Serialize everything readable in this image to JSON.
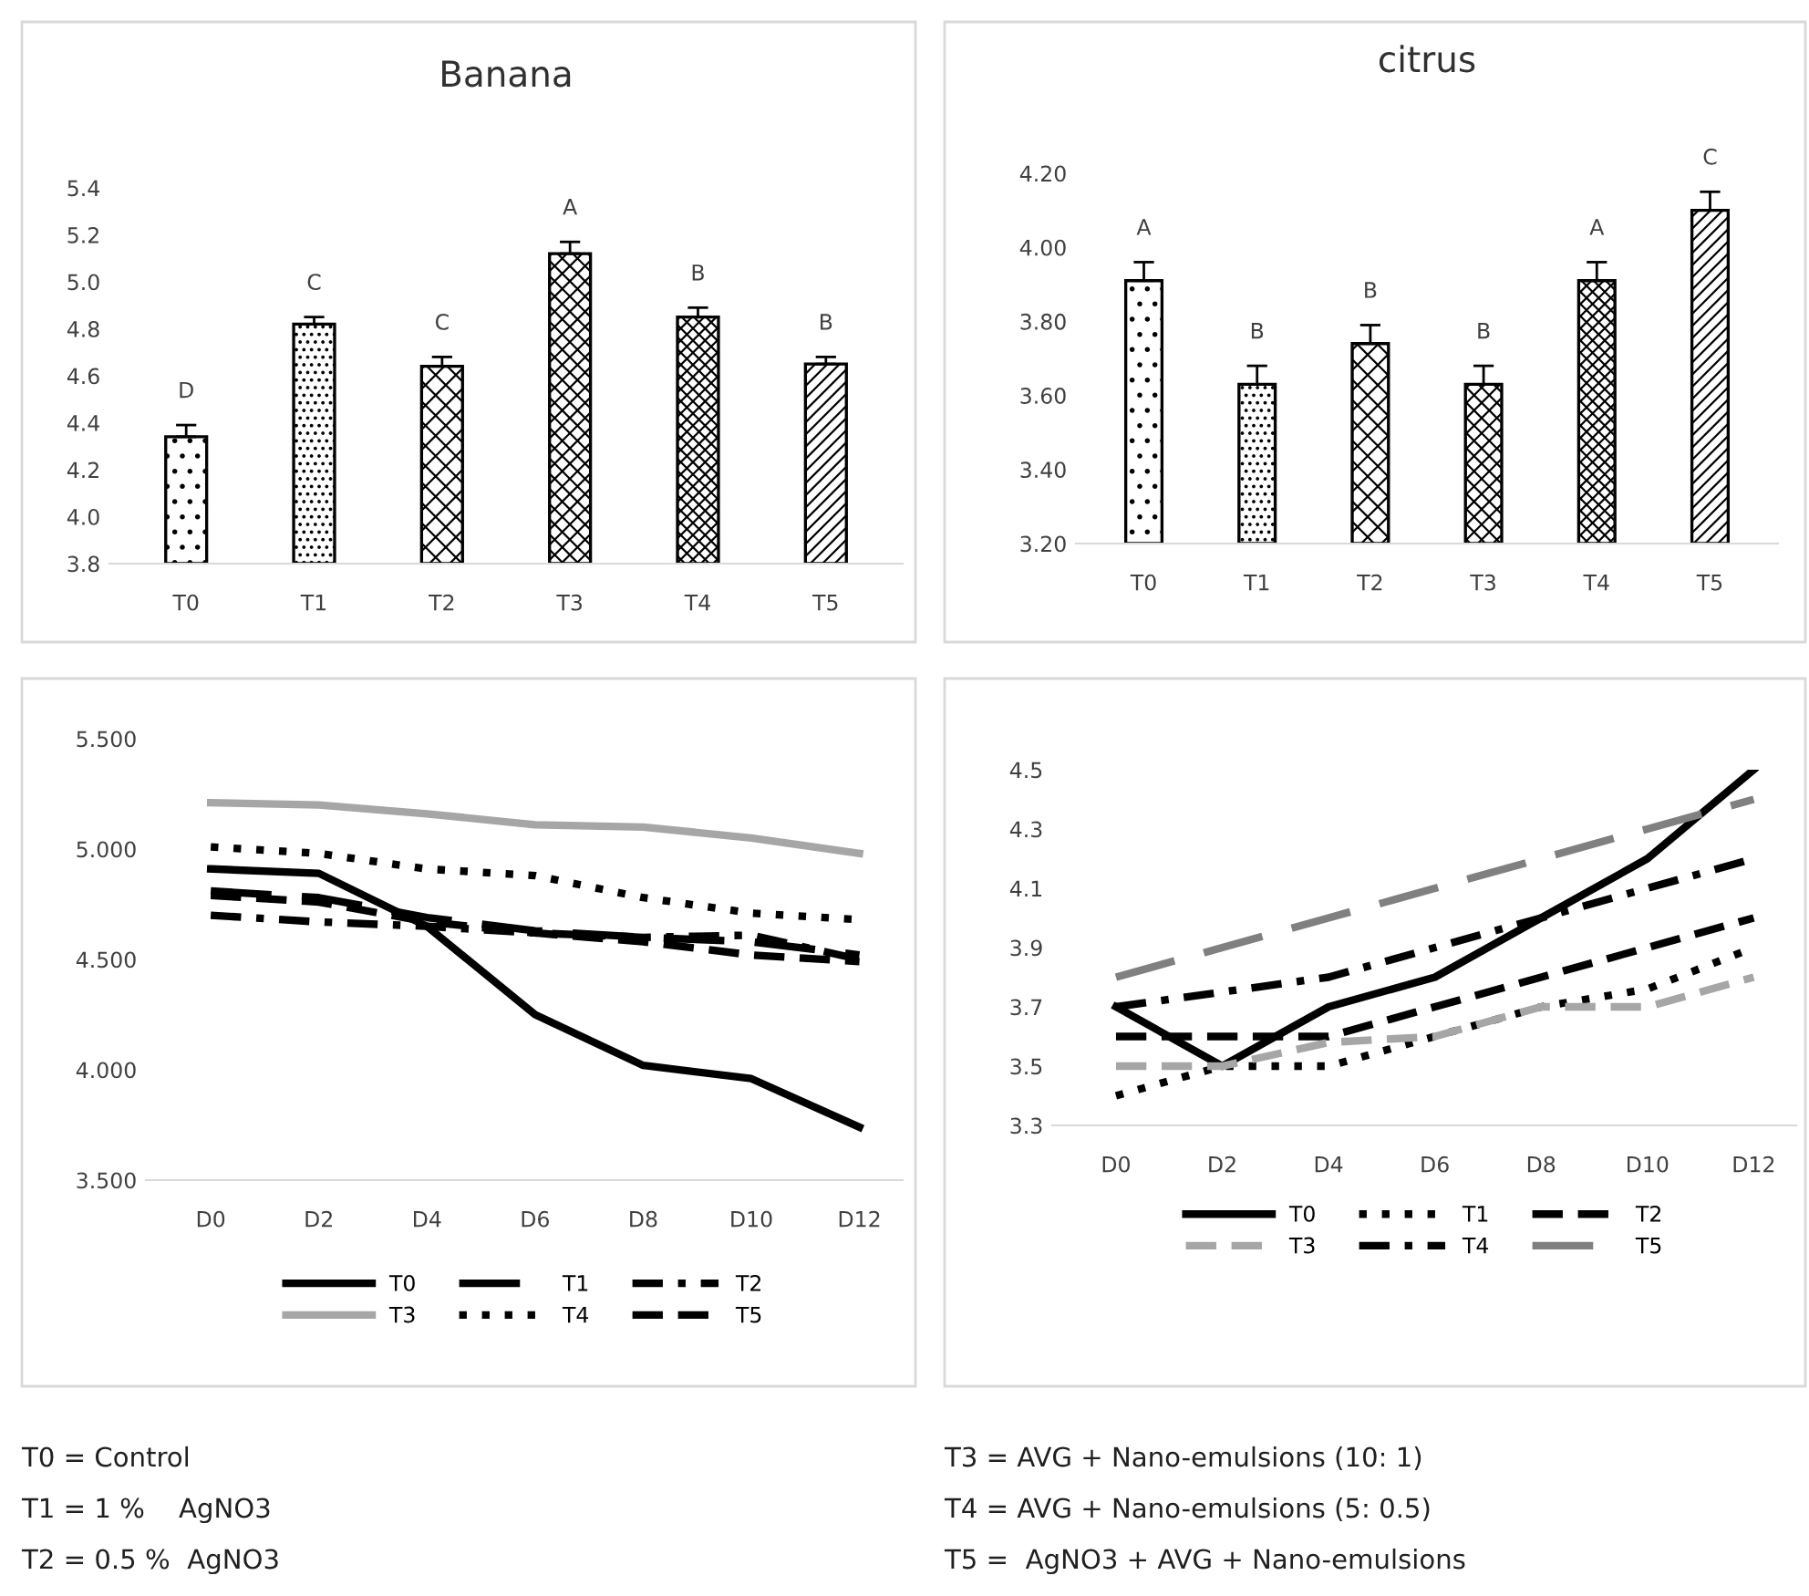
{
  "chart_data": [
    {
      "type": "bar",
      "title": "Banana",
      "categories": [
        "T0",
        "T1",
        "T2",
        "T3",
        "T4",
        "T5"
      ],
      "values": [
        4.34,
        4.82,
        4.64,
        5.12,
        4.85,
        4.65
      ],
      "colors": [
        "#000000",
        "#000000",
        "#000000",
        "#000000",
        "#000000",
        "#000000"
      ],
      "errors": [
        [
          4.34,
          4.39
        ],
        [
          4.82,
          4.85
        ],
        [
          4.64,
          4.68
        ],
        [
          5.12,
          5.17
        ],
        [
          4.85,
          4.89
        ],
        [
          4.65,
          4.68
        ]
      ],
      "ylim": [
        3.8,
        5.4
      ],
      "yticks": [
        {
          "value": 3.8,
          "label": "3.8"
        },
        {
          "value": 4.0,
          "label": "4.0"
        },
        {
          "value": 4.2,
          "label": "4.2"
        },
        {
          "value": 4.4,
          "label": "4.4"
        },
        {
          "value": 4.6,
          "label": "4.6"
        },
        {
          "value": 4.8,
          "label": "4.8"
        },
        {
          "value": 5.0,
          "label": "5.0"
        },
        {
          "value": 5.2,
          "label": "5.2"
        },
        {
          "value": 5.4,
          "label": "5.4"
        }
      ],
      "annotations": [
        {
          "text": "D",
          "x": "T0",
          "y": 4.39
        },
        {
          "text": "C",
          "x": "T1",
          "y": 4.85
        },
        {
          "text": "C",
          "x": "T2",
          "y": 4.68
        },
        {
          "text": "A",
          "x": "T3",
          "y": 5.17
        },
        {
          "text": "B",
          "x": "T4",
          "y": 4.89
        },
        {
          "text": "B",
          "x": "T5",
          "y": 4.68
        }
      ],
      "grid": false
    },
    {
      "type": "bar",
      "title": "citrus",
      "categories": [
        "T0",
        "T1",
        "T2",
        "T3",
        "T4",
        "T5"
      ],
      "values": [
        3.91,
        3.63,
        3.74,
        3.63,
        3.91,
        4.1
      ],
      "colors": [
        "#000000",
        "#000000",
        "#000000",
        "#000000",
        "#000000",
        "#000000"
      ],
      "errors": [
        [
          3.91,
          3.96
        ],
        [
          3.63,
          3.68
        ],
        [
          3.74,
          3.79
        ],
        [
          3.63,
          3.68
        ],
        [
          3.91,
          3.96
        ],
        [
          4.1,
          4.15
        ]
      ],
      "ylim": [
        3.2,
        4.2
      ],
      "yticks": [
        {
          "value": 3.2,
          "label": "3.20"
        },
        {
          "value": 3.4,
          "label": "3.40"
        },
        {
          "value": 3.6,
          "label": "3.60"
        },
        {
          "value": 3.8,
          "label": "3.80"
        },
        {
          "value": 4.0,
          "label": "4.00"
        },
        {
          "value": 4.2,
          "label": "4.20"
        }
      ],
      "annotations": [
        {
          "text": "A",
          "x": "T0",
          "y": 3.96
        },
        {
          "text": "B",
          "x": "T1",
          "y": 3.68
        },
        {
          "text": "B",
          "x": "T2",
          "y": 3.79
        },
        {
          "text": "B",
          "x": "T3",
          "y": 3.68
        },
        {
          "text": "A",
          "x": "T4",
          "y": 3.96
        },
        {
          "text": "C",
          "x": "T5",
          "y": 4.15
        }
      ],
      "grid": false
    },
    {
      "type": "line",
      "categories": [
        "D0",
        "D2",
        "D4",
        "D6",
        "D8",
        "D10",
        "D12"
      ],
      "series": [
        {
          "name": "T0",
          "color": "#000000",
          "line_style": "solid",
          "values": [
            4.91,
            4.89,
            4.65,
            4.25,
            4.02,
            3.96,
            3.74
          ]
        },
        {
          "name": "T1",
          "color": "#000000",
          "line_style": "longdash",
          "values": [
            4.81,
            4.78,
            4.69,
            4.63,
            4.6,
            4.58,
            4.52
          ]
        },
        {
          "name": "T2",
          "color": "#000000",
          "line_style": "dashdot",
          "values": [
            4.7,
            4.67,
            4.65,
            4.62,
            4.6,
            4.61,
            4.5
          ]
        },
        {
          "name": "T3",
          "color": "#a6a6a6",
          "line_style": "solid",
          "values": [
            5.21,
            5.2,
            5.16,
            5.11,
            5.1,
            5.05,
            4.98
          ]
        },
        {
          "name": "T4",
          "color": "#000000",
          "line_style": "dotted",
          "values": [
            5.01,
            4.98,
            4.91,
            4.88,
            4.78,
            4.71,
            4.68
          ]
        },
        {
          "name": "T5",
          "color": "#000000",
          "line_style": "dashed",
          "values": [
            4.79,
            4.76,
            4.67,
            4.62,
            4.58,
            4.52,
            4.49
          ]
        }
      ],
      "ylim": [
        3.5,
        5.5
      ],
      "yticks": [
        {
          "value": 3.5,
          "label": "3.500"
        },
        {
          "value": 4.0,
          "label": "4.000"
        },
        {
          "value": 4.5,
          "label": "4.500"
        },
        {
          "value": 5.0,
          "label": "5.000"
        },
        {
          "value": 5.5,
          "label": "5.500"
        }
      ],
      "annotations": [
        "T0 = Control",
        "T1 = 1 %    AgNO3",
        "T2 = 0.5 %  AgNO3"
      ],
      "grid": false,
      "legend": "bottom",
      "marker": "none"
    },
    {
      "type": "line",
      "categories": [
        "D0",
        "D2",
        "D4",
        "D6",
        "D8",
        "D10",
        "D12"
      ],
      "series": [
        {
          "name": "T0",
          "color": "#000000",
          "line_style": "solid",
          "values": [
            3.7,
            3.5,
            3.7,
            3.8,
            4.0,
            4.2,
            4.5
          ]
        },
        {
          "name": "T1",
          "color": "#000000",
          "line_style": "dotted",
          "values": [
            3.4,
            3.5,
            3.5,
            3.6,
            3.7,
            3.76,
            3.9
          ]
        },
        {
          "name": "T2",
          "color": "#000000",
          "line_style": "dashed",
          "values": [
            3.6,
            3.6,
            3.6,
            3.7,
            3.8,
            3.9,
            4.0
          ]
        },
        {
          "name": "T3",
          "color": "#a6a6a6",
          "line_style": "dashed",
          "values": [
            3.5,
            3.5,
            3.58,
            3.6,
            3.7,
            3.7,
            3.8
          ]
        },
        {
          "name": "T4",
          "color": "#000000",
          "line_style": "dashdot",
          "values": [
            3.7,
            3.75,
            3.8,
            3.9,
            4.0,
            4.1,
            4.2
          ]
        },
        {
          "name": "T5",
          "color": "#808080",
          "line_style": "longdash",
          "values": [
            3.8,
            3.9,
            4.0,
            4.1,
            4.2,
            4.3,
            4.4
          ]
        }
      ],
      "ylim": [
        3.3,
        4.5
      ],
      "yticks": [
        3.3,
        3.5,
        3.7,
        3.9,
        4.1,
        4.3,
        4.5
      ],
      "annotations": [
        "T3 = AVG + Nano-emulsions (10: 1)",
        "T4 = AVG + Nano-emulsions (5: 0.5)",
        "T5 =  AgNO3 + AVG + Nano-emulsions"
      ],
      "grid": false,
      "legend": "bottom",
      "marker": "none"
    }
  ]
}
